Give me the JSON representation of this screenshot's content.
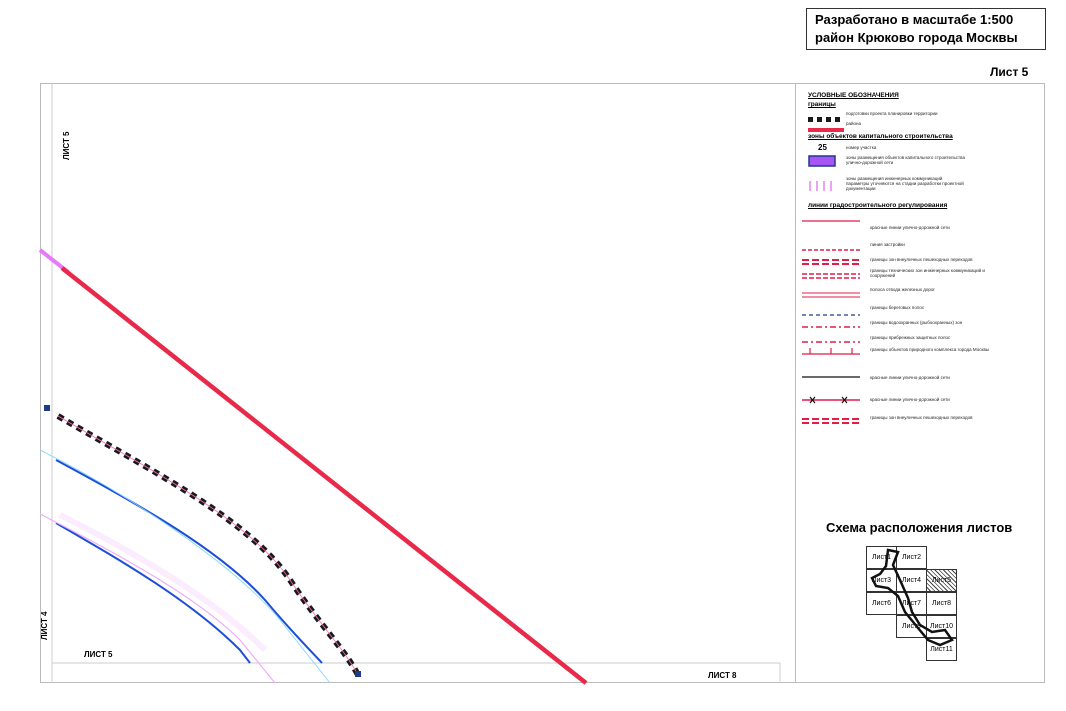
{
  "title": {
    "line1": "Разработано в масштабе 1:500",
    "line2": "район Крюково города Москвы"
  },
  "sheet_number": "Лист 5",
  "map_labels": {
    "left_top": "ЛИСТ 5",
    "left_bottom": "ЛИСТ 4",
    "bottom_left": "ЛИСТ 5",
    "bottom_right": "ЛИСТ 8"
  },
  "legend": {
    "heading": "УСЛОВНЫЕ ОБОЗНАЧЕНИЯ",
    "sub_boundaries": "границы",
    "sub_zones": "зоны объектов капитального строительства",
    "sub_lines": "линии градостроительного регулирования",
    "parcel_number": "25",
    "items": [
      {
        "symbol": "squares",
        "color": "#1a1a1a",
        "text": "подготовки проекта планировки территории"
      },
      {
        "symbol": "thick-line",
        "color": "#e8294a",
        "text": "района"
      },
      {
        "symbol": "number",
        "color": "#000000",
        "text": "номер участка"
      },
      {
        "symbol": "purple-box",
        "color": "#a855f7",
        "text": "зоны размещения объектов капитального строительства улично-дорожной сети"
      },
      {
        "symbol": "vbars",
        "color": "#d946ef",
        "text": "зоны размещения инженерных коммуникаций параметры уточняются на стадии разработки проектной документации"
      },
      {
        "symbol": "line-label",
        "color": "#e11d48",
        "text": "красные линии улично-дорожной сети"
      },
      {
        "symbol": "dashed",
        "color": "#e11d48",
        "text": "линия застройки"
      },
      {
        "symbol": "double-dash",
        "color": "#e11d48",
        "text": "границы зон внеуличных пешеходных переходов"
      },
      {
        "symbol": "double-dash",
        "color": "#e11d48",
        "text": "границы технических зон инженерных коммуникаций и сооружений"
      },
      {
        "symbol": "double-line",
        "color": "#e11d48",
        "text": "полоса отвода железных дорог"
      },
      {
        "symbol": "blue-dash",
        "color": "#1e3a8a",
        "text": "границы береговых полос"
      },
      {
        "symbol": "dash-dot",
        "color": "#e11d48",
        "text": "границы водоохранных (рыбоохранных) зон"
      },
      {
        "symbol": "dash-dot",
        "color": "#e11d48",
        "text": "границы прибрежных защитных полос"
      },
      {
        "symbol": "ticks",
        "color": "#e11d48",
        "text": "границы объектов природного комплекса города Москвы"
      },
      {
        "symbol": "black-line",
        "color": "#111111",
        "text": "красные линии улично-дорожной сети"
      },
      {
        "symbol": "cross-line",
        "color": "#e11d48",
        "text": "красные линии улично-дорожной сети"
      },
      {
        "symbol": "double-dash",
        "color": "#e11d48",
        "text": "границы зон внеуличных пешеходных переходов"
      }
    ]
  },
  "schema": {
    "title": "Схема расположения листов",
    "cells": [
      "Лист1",
      "Лист2",
      "Лист3",
      "Лист4",
      "Лист5",
      "Лист6",
      "Лист7",
      "Лист8",
      "Лист9",
      "Лист10",
      "Лист11"
    ],
    "current": "Лист5"
  },
  "colors": {
    "red_line": "#e8294a",
    "blue_line": "#1d4ed8",
    "magenta_line": "#d946ef",
    "boundary_squares": "#1a1a1a"
  }
}
